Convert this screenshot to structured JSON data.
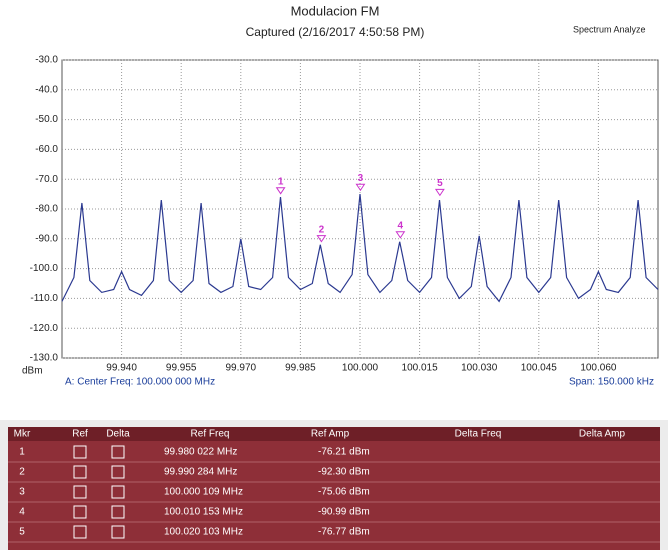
{
  "chart_data": {
    "type": "line",
    "title": "Modulacion FM",
    "subtitle": "Captured (2/16/2017 4:50:58 PM)",
    "app_label": "Spectrum Analyze",
    "y_unit": "dBm",
    "center_note": "A: Center Freq: 100.000 000 MHz",
    "span_note": "Span: 150.000 kHz",
    "color": "#2b3990",
    "marker_color": "#cc33cc",
    "xlim": [
      99.925,
      100.075
    ],
    "ylim": [
      -130,
      -30
    ],
    "xticks": [
      {
        "value": 99.94,
        "label": "99.940"
      },
      {
        "value": 99.955,
        "label": "99.955"
      },
      {
        "value": 99.97,
        "label": "99.970"
      },
      {
        "value": 99.985,
        "label": "99.985"
      },
      {
        "value": 100,
        "label": "100.000"
      },
      {
        "value": 100.015,
        "label": "100.015"
      },
      {
        "value": 100.03,
        "label": "100.030"
      },
      {
        "value": 100.045,
        "label": "100.045"
      },
      {
        "value": 100.06,
        "label": "100.060"
      }
    ],
    "yticks": [
      {
        "value": -30,
        "label": "-30.0"
      },
      {
        "value": -40,
        "label": "-40.0"
      },
      {
        "value": -50,
        "label": "-50.0"
      },
      {
        "value": -60,
        "label": "-60.0"
      },
      {
        "value": -70,
        "label": "-70.0"
      },
      {
        "value": -80,
        "label": "-80.0"
      },
      {
        "value": -90,
        "label": "-90.0"
      },
      {
        "value": -100,
        "label": "-100.0"
      },
      {
        "value": -110,
        "label": "-110.0"
      },
      {
        "value": -120,
        "label": "-120.0"
      },
      {
        "value": -130,
        "label": "-130.0"
      }
    ],
    "grid": true,
    "x": [
      99.925,
      99.928,
      99.93,
      99.932,
      99.935,
      99.938,
      99.94,
      99.942,
      99.945,
      99.948,
      99.95,
      99.952,
      99.955,
      99.958,
      99.96,
      99.962,
      99.965,
      99.968,
      99.97,
      99.972,
      99.975,
      99.978,
      99.98,
      99.982,
      99.985,
      99.988,
      99.99,
      99.992,
      99.995,
      99.998,
      100.0,
      100.002,
      100.005,
      100.008,
      100.01,
      100.012,
      100.015,
      100.018,
      100.02,
      100.022,
      100.025,
      100.028,
      100.03,
      100.032,
      100.035,
      100.038,
      100.04,
      100.042,
      100.045,
      100.048,
      100.05,
      100.052,
      100.055,
      100.058,
      100.06,
      100.062,
      100.065,
      100.068,
      100.07,
      100.072,
      100.075
    ],
    "values": [
      -111,
      -103,
      -78,
      -104,
      -108,
      -107,
      -101,
      -107,
      -109,
      -104,
      -77,
      -104,
      -108,
      -104,
      -78,
      -105,
      -108,
      -106,
      -90,
      -106,
      -107,
      -103,
      -76,
      -103,
      -107,
      -105,
      -92,
      -105,
      -108,
      -102,
      -75,
      -102,
      -108,
      -104,
      -91,
      -104,
      -108,
      -103,
      -77,
      -103,
      -110,
      -106,
      -89,
      -106,
      -111,
      -103,
      -77,
      -103,
      -108,
      -103,
      -77,
      -103,
      -110,
      -107,
      -101,
      -107,
      -108,
      -103,
      -77,
      -103,
      -107
    ],
    "markers": [
      {
        "label": "1",
        "x": 99.980022,
        "y": -76.21
      },
      {
        "label": "2",
        "x": 99.990284,
        "y": -92.3
      },
      {
        "label": "3",
        "x": 100.000109,
        "y": -75.06
      },
      {
        "label": "4",
        "x": 100.010153,
        "y": -90.99
      },
      {
        "label": "5",
        "x": 100.020103,
        "y": -76.77
      }
    ]
  },
  "table": {
    "columns": [
      "Mkr",
      "Ref",
      "Delta",
      "Ref Freq",
      "Ref Amp",
      "Delta Freq",
      "Delta Amp"
    ],
    "rows": [
      [
        "1",
        "99.980 022 MHz",
        "-76.21 dBm"
      ],
      [
        "2",
        "99.990 284 MHz",
        "-92.30 dBm"
      ],
      [
        "3",
        "100.000 109 MHz",
        "-75.06 dBm"
      ],
      [
        "4",
        "100.010 153 MHz",
        "-90.99 dBm"
      ],
      [
        "5",
        "100.020 103 MHz",
        "-76.77 dBm"
      ]
    ]
  }
}
